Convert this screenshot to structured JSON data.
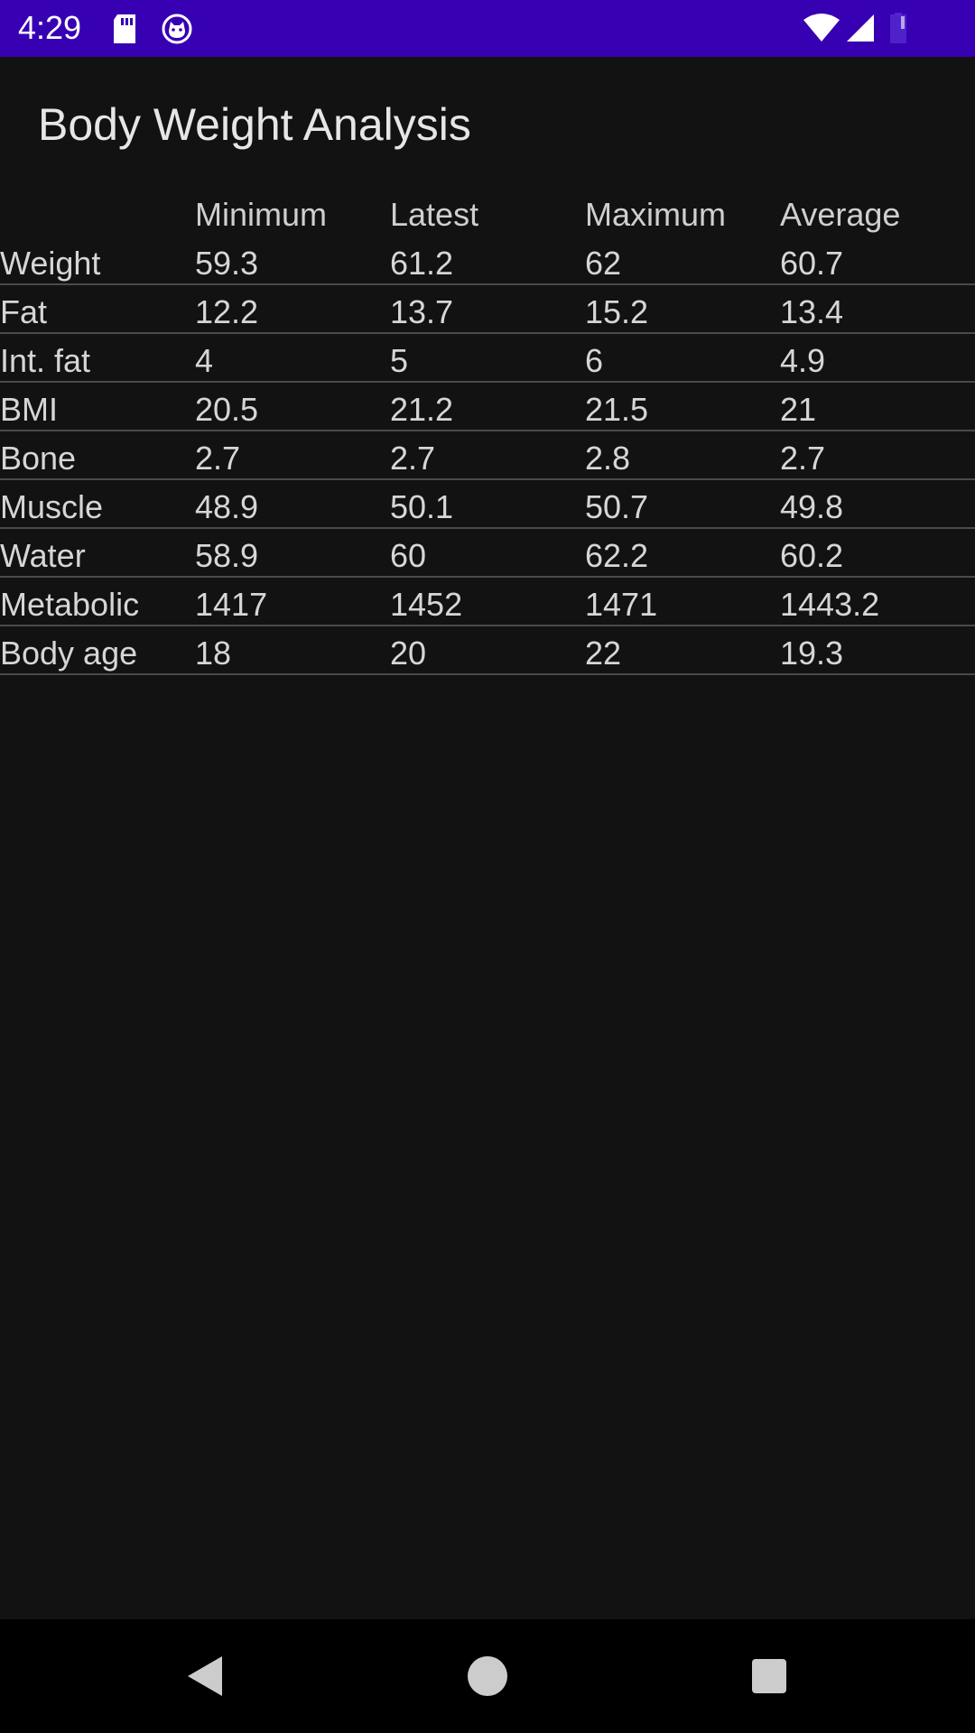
{
  "status_bar": {
    "time": "4:29",
    "icons": [
      "sd-card-icon",
      "cat-face-icon",
      "wifi-icon",
      "signal-icon",
      "battery-icon"
    ],
    "background_color": "#3700b3"
  },
  "page": {
    "title": "Body Weight Analysis"
  },
  "table": {
    "columns": [
      "",
      "Minimum",
      "Latest",
      "Maximum",
      "Average"
    ],
    "rows": [
      {
        "label": "Weight",
        "minimum": "59.3",
        "latest": "61.2",
        "maximum": "62",
        "average": "60.7"
      },
      {
        "label": "Fat",
        "minimum": "12.2",
        "latest": "13.7",
        "maximum": "15.2",
        "average": "13.4"
      },
      {
        "label": "Int. fat",
        "minimum": "4",
        "latest": "5",
        "maximum": "6",
        "average": "4.9"
      },
      {
        "label": "BMI",
        "minimum": "20.5",
        "latest": "21.2",
        "maximum": "21.5",
        "average": "21"
      },
      {
        "label": "Bone",
        "minimum": "2.7",
        "latest": "2.7",
        "maximum": "2.8",
        "average": "2.7"
      },
      {
        "label": "Muscle",
        "minimum": "48.9",
        "latest": "50.1",
        "maximum": "50.7",
        "average": "49.8"
      },
      {
        "label": "Water",
        "minimum": "58.9",
        "latest": "60",
        "maximum": "62.2",
        "average": "60.2"
      },
      {
        "label": "Metabolic",
        "minimum": "1417",
        "latest": "1452",
        "maximum": "1471",
        "average": "1443.2"
      },
      {
        "label": "Body age",
        "minimum": "18",
        "latest": "20",
        "maximum": "22",
        "average": "19.3"
      }
    ]
  },
  "nav_bar": {
    "buttons": [
      "back-icon",
      "home-icon",
      "recents-icon"
    ]
  }
}
